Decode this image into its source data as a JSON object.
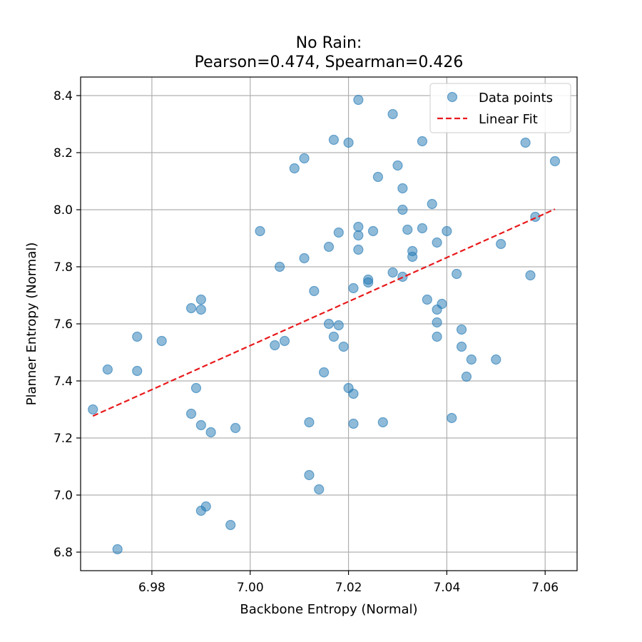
{
  "chart_data": {
    "type": "scatter",
    "title_line1": "No Rain:",
    "title_line2": "Pearson=0.474, Spearman=0.426",
    "xlabel": "Backbone Entropy (Normal)",
    "ylabel": "Planner Entropy (Normal)",
    "xlim": [
      6.9655,
      7.0665
    ],
    "ylim": [
      6.735,
      8.465
    ],
    "xticks": [
      6.98,
      7.0,
      7.02,
      7.04,
      7.06
    ],
    "yticks": [
      6.8,
      7.0,
      7.2,
      7.4,
      7.6,
      7.8,
      8.0,
      8.2,
      8.4
    ],
    "xtick_labels": [
      "6.98",
      "7.00",
      "7.02",
      "7.04",
      "7.06"
    ],
    "ytick_labels": [
      "6.8",
      "7.0",
      "7.2",
      "7.4",
      "7.6",
      "7.8",
      "8.0",
      "8.2",
      "8.4"
    ],
    "grid": true,
    "legend_position": "top-right",
    "series": [
      {
        "name": "Data points",
        "kind": "scatter",
        "color": "#1f77b4",
        "points": [
          [
            6.968,
            7.3
          ],
          [
            6.971,
            7.44
          ],
          [
            6.973,
            6.81
          ],
          [
            6.977,
            7.435
          ],
          [
            6.977,
            7.555
          ],
          [
            6.982,
            7.54
          ],
          [
            6.988,
            7.655
          ],
          [
            6.988,
            7.285
          ],
          [
            6.989,
            7.375
          ],
          [
            6.99,
            7.685
          ],
          [
            6.99,
            7.65
          ],
          [
            6.99,
            7.245
          ],
          [
            6.99,
            6.945
          ],
          [
            6.991,
            6.96
          ],
          [
            6.992,
            7.22
          ],
          [
            6.996,
            6.895
          ],
          [
            6.997,
            7.235
          ],
          [
            7.002,
            7.925
          ],
          [
            7.005,
            7.525
          ],
          [
            7.006,
            7.8
          ],
          [
            7.007,
            7.54
          ],
          [
            7.009,
            8.145
          ],
          [
            7.011,
            8.18
          ],
          [
            7.011,
            7.83
          ],
          [
            7.012,
            7.255
          ],
          [
            7.012,
            7.07
          ],
          [
            7.013,
            7.715
          ],
          [
            7.014,
            7.02
          ],
          [
            7.015,
            7.43
          ],
          [
            7.016,
            7.87
          ],
          [
            7.016,
            7.6
          ],
          [
            7.017,
            7.555
          ],
          [
            7.017,
            8.245
          ],
          [
            7.018,
            7.92
          ],
          [
            7.018,
            7.595
          ],
          [
            7.019,
            7.52
          ],
          [
            7.02,
            8.235
          ],
          [
            7.02,
            7.375
          ],
          [
            7.021,
            7.725
          ],
          [
            7.021,
            7.355
          ],
          [
            7.021,
            7.25
          ],
          [
            7.022,
            7.86
          ],
          [
            7.022,
            7.91
          ],
          [
            7.022,
            7.94
          ],
          [
            7.022,
            8.385
          ],
          [
            7.024,
            7.755
          ],
          [
            7.024,
            7.745
          ],
          [
            7.025,
            7.925
          ],
          [
            7.026,
            8.115
          ],
          [
            7.027,
            7.255
          ],
          [
            7.029,
            8.335
          ],
          [
            7.029,
            7.78
          ],
          [
            7.03,
            8.155
          ],
          [
            7.031,
            8.075
          ],
          [
            7.031,
            8.0
          ],
          [
            7.031,
            7.765
          ],
          [
            7.032,
            7.93
          ],
          [
            7.033,
            7.855
          ],
          [
            7.033,
            7.835
          ],
          [
            7.035,
            8.24
          ],
          [
            7.035,
            7.935
          ],
          [
            7.036,
            7.685
          ],
          [
            7.037,
            8.02
          ],
          [
            7.038,
            7.885
          ],
          [
            7.038,
            7.65
          ],
          [
            7.038,
            7.555
          ],
          [
            7.038,
            7.605
          ],
          [
            7.039,
            7.67
          ],
          [
            7.04,
            7.925
          ],
          [
            7.041,
            7.27
          ],
          [
            7.042,
            7.775
          ],
          [
            7.043,
            7.58
          ],
          [
            7.043,
            7.52
          ],
          [
            7.044,
            7.415
          ],
          [
            7.045,
            7.475
          ],
          [
            7.05,
            7.475
          ],
          [
            7.051,
            7.88
          ],
          [
            7.056,
            8.235
          ],
          [
            7.057,
            7.77
          ],
          [
            7.058,
            7.975
          ],
          [
            7.062,
            8.17
          ]
        ]
      },
      {
        "name": "Linear Fit",
        "kind": "line",
        "style": "dashed",
        "color": "#e8191c",
        "x": [
          6.968,
          7.062
        ],
        "y": [
          7.277,
          8.002
        ]
      }
    ]
  }
}
